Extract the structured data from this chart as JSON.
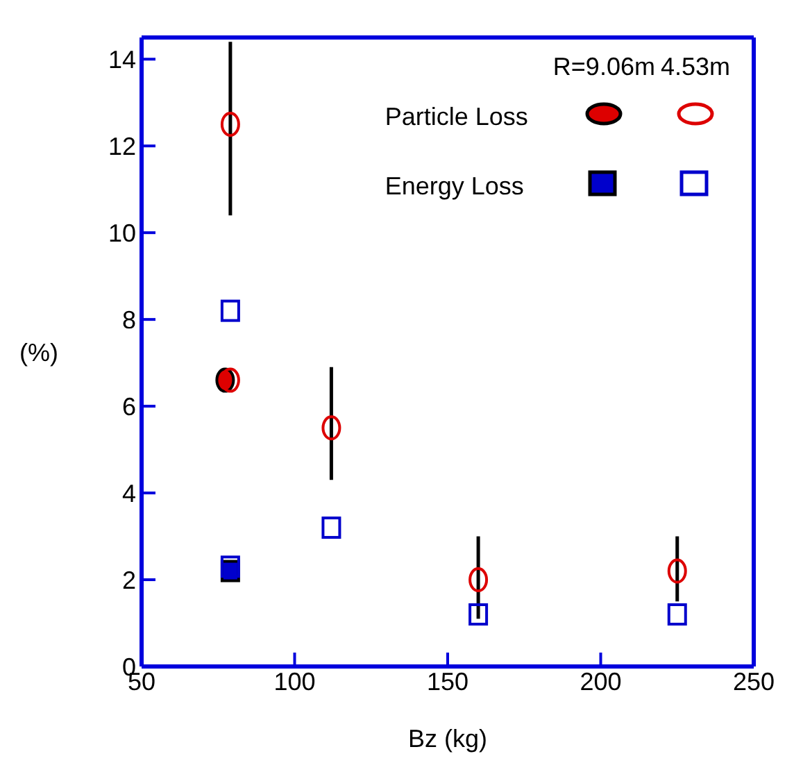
{
  "chart_data": {
    "type": "scatter",
    "xlabel": "Bz (kg)",
    "ylabel": "(%)",
    "xlim": [
      50,
      250
    ],
    "xticks": [
      50,
      100,
      150,
      200,
      250
    ],
    "ylim": [
      0,
      14.5
    ],
    "yticks": [
      0,
      2,
      4,
      6,
      8,
      10,
      12,
      14
    ],
    "legend": "top right",
    "annotations": [
      "R=9.06m",
      "4.53m"
    ],
    "series": [
      {
        "name": "Particle Loss",
        "color": "#dd0000",
        "marker": "circle",
        "x": [
          77.3
        ],
        "values": [
          6.6
        ]
      },
      {
        "color": "#dd0000",
        "marker": "circle",
        "x": [
          79,
          79,
          112,
          160,
          225
        ],
        "values": [
          12.5,
          6.6,
          5.5,
          2.0,
          2.2
        ],
        "errors": [
          [
            10.4,
            14.4
          ],
          null,
          [
            4.3,
            6.9
          ],
          [
            1.1,
            3.0
          ],
          [
            1.5,
            3.0
          ]
        ]
      },
      {
        "name": "Energy Loss",
        "color": "#0000cc",
        "marker": "square",
        "x": [
          79
        ],
        "values": [
          2.2
        ]
      },
      {
        "color": "#0000cc",
        "marker": "square",
        "x": [
          79,
          79,
          112,
          160,
          225
        ],
        "values": [
          8.2,
          2.3,
          3.2,
          1.2,
          1.2
        ]
      }
    ]
  }
}
